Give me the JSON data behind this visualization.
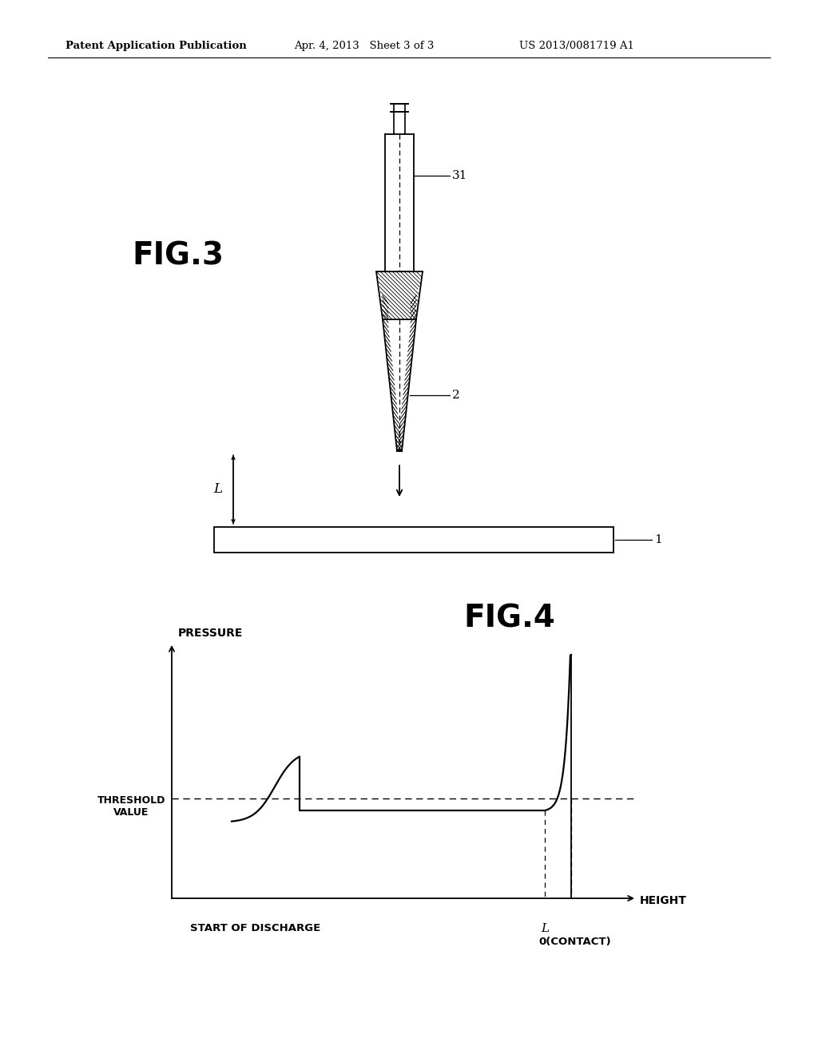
{
  "bg_color": "#ffffff",
  "header_left": "Patent Application Publication",
  "header_mid": "Apr. 4, 2013   Sheet 3 of 3",
  "header_right": "US 2013/0081719 A1",
  "fig3_label": "FIG.3",
  "fig4_label": "FIG.4",
  "label_31": "31",
  "label_2": "2",
  "label_1": "1",
  "label_L_fig3": "L",
  "pressure_label": "PRESSURE",
  "threshold_label": "THRESHOLD\nVALUE",
  "height_label": "HEIGHT",
  "start_discharge_label": "START OF DISCHARGE",
  "label_L_fig4": "L",
  "label_0_contact": "0(CONTACT)"
}
